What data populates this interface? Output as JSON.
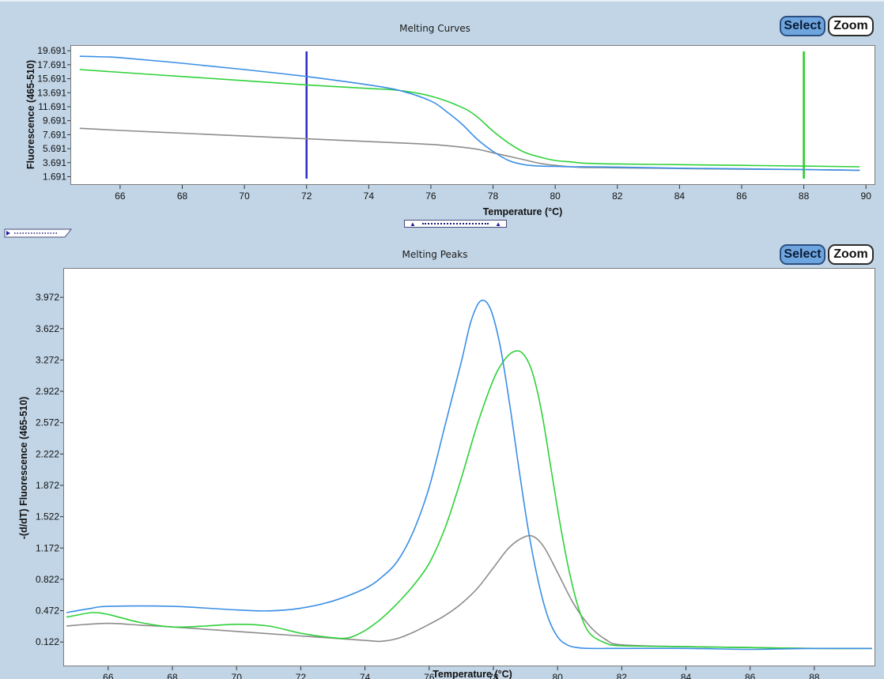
{
  "curves_panel": {
    "title": "Melting Curves",
    "select_label": "Select",
    "zoom_label": "Zoom"
  },
  "peaks_panel": {
    "title": "Melting Peaks",
    "select_label": "Select",
    "zoom_label": "Zoom"
  },
  "colors": {
    "blue": "#3a8ee6",
    "green": "#2fd13a",
    "gray": "#8c8c8c",
    "cursor_blue": "#2b2bc8",
    "cursor_green": "#22cc22"
  },
  "chart_data": [
    {
      "type": "line",
      "title": "Melting Curves",
      "xlabel": "Temperature (°C)",
      "ylabel": "Fluorescence (465-510)",
      "xlim": [
        64.4,
        90.3
      ],
      "ylim": [
        0.5,
        20.5
      ],
      "x_ticks": [
        "66",
        "68",
        "70",
        "72",
        "74",
        "76",
        "78",
        "80",
        "82",
        "84",
        "86",
        "88",
        "90"
      ],
      "y_ticks": [
        "19.691",
        "17.691",
        "15.691",
        "13.691",
        "11.691",
        "9.691",
        "7.691",
        "5.691",
        "3.691",
        "1.691"
      ],
      "cursors": [
        72,
        88
      ],
      "series": [
        {
          "color": "blue",
          "x": [
            64.7,
            65.5,
            66,
            68,
            70,
            72,
            74,
            75,
            76,
            76.5,
            77,
            77.5,
            78,
            78.5,
            79,
            79.5,
            80,
            80.5,
            81,
            82,
            84,
            86,
            88,
            89.8
          ],
          "y": [
            18.9,
            18.8,
            18.7,
            17.9,
            17.0,
            16.0,
            14.8,
            14.0,
            12.5,
            11.0,
            9.2,
            7.0,
            5.3,
            4.0,
            3.4,
            3.2,
            3.15,
            3.1,
            3.1,
            3.05,
            2.9,
            2.8,
            2.7,
            2.6
          ]
        },
        {
          "color": "green",
          "x": [
            64.7,
            66,
            68,
            70,
            72,
            74,
            75,
            76,
            77,
            77.5,
            78,
            78.5,
            79,
            79.5,
            80,
            80.5,
            81,
            82,
            84,
            86,
            88,
            89.8
          ],
          "y": [
            17.0,
            16.6,
            16.0,
            15.4,
            14.8,
            14.3,
            14.0,
            13.2,
            11.6,
            10.2,
            8.2,
            6.5,
            5.2,
            4.5,
            4.0,
            3.8,
            3.6,
            3.5,
            3.4,
            3.3,
            3.2,
            3.1
          ]
        },
        {
          "color": "gray",
          "x": [
            64.7,
            66,
            68,
            70,
            72,
            74,
            76,
            77,
            77.5,
            78,
            78.5,
            79,
            79.5,
            80,
            80.5,
            81,
            82,
            84,
            86,
            88,
            89.8
          ],
          "y": [
            8.6,
            8.3,
            7.9,
            7.5,
            7.1,
            6.7,
            6.3,
            5.9,
            5.6,
            5.1,
            4.6,
            4.1,
            3.6,
            3.3,
            3.1,
            3.0,
            2.95,
            2.85,
            2.75,
            2.7,
            2.6
          ]
        }
      ]
    },
    {
      "type": "line",
      "title": "Melting Peaks",
      "xlabel": "Temperature (°C)",
      "ylabel": "-(d/dT) Fluorescence (465-510)",
      "xlim": [
        64.6,
        89.9
      ],
      "ylim": [
        -0.15,
        4.3
      ],
      "x_ticks": [
        "66",
        "68",
        "70",
        "72",
        "74",
        "76",
        "78",
        "80",
        "82",
        "84",
        "86",
        "88"
      ],
      "y_ticks": [
        "3.972",
        "3.622",
        "3.272",
        "2.922",
        "2.572",
        "2.222",
        "1.872",
        "1.522",
        "1.172",
        "0.822",
        "0.472",
        "0.122"
      ],
      "series": [
        {
          "color": "blue",
          "x": [
            64.7,
            65,
            65.5,
            66,
            68,
            70,
            71,
            72,
            73,
            74,
            74.5,
            75,
            75.5,
            76,
            76.5,
            77,
            77.3,
            77.6,
            77.9,
            78.2,
            78.5,
            78.8,
            79.1,
            79.4,
            79.7,
            80,
            80.3,
            80.6,
            81,
            82,
            84,
            86,
            88,
            89.8
          ],
          "y": [
            0.45,
            0.47,
            0.5,
            0.52,
            0.52,
            0.48,
            0.47,
            0.5,
            0.58,
            0.72,
            0.84,
            1.02,
            1.35,
            1.85,
            2.55,
            3.25,
            3.7,
            3.93,
            3.85,
            3.45,
            2.8,
            2.05,
            1.35,
            0.8,
            0.4,
            0.18,
            0.09,
            0.06,
            0.05,
            0.05,
            0.05,
            0.04,
            0.05,
            0.05
          ]
        },
        {
          "color": "green",
          "x": [
            64.7,
            65,
            65.5,
            66,
            67,
            68,
            69,
            70,
            71,
            72,
            73,
            73.5,
            74,
            74.5,
            75,
            75.5,
            76,
            76.5,
            77,
            77.5,
            78,
            78.3,
            78.6,
            78.9,
            79.2,
            79.5,
            79.8,
            80.1,
            80.4,
            80.7,
            81,
            81.5,
            82,
            84,
            86,
            88,
            89.8
          ],
          "y": [
            0.4,
            0.42,
            0.45,
            0.43,
            0.34,
            0.29,
            0.3,
            0.32,
            0.3,
            0.22,
            0.17,
            0.17,
            0.25,
            0.38,
            0.55,
            0.75,
            1.0,
            1.4,
            1.95,
            2.55,
            3.05,
            3.25,
            3.36,
            3.35,
            3.15,
            2.7,
            2.05,
            1.4,
            0.85,
            0.45,
            0.22,
            0.11,
            0.08,
            0.07,
            0.06,
            0.05,
            0.05
          ]
        },
        {
          "color": "gray",
          "x": [
            64.7,
            65,
            66,
            67,
            68,
            70,
            72,
            74,
            74.5,
            75,
            75.5,
            76,
            76.5,
            77,
            77.5,
            78,
            78.5,
            79,
            79.3,
            79.6,
            80,
            80.5,
            81,
            81.5,
            82,
            84,
            86,
            88,
            89.8
          ],
          "y": [
            0.3,
            0.31,
            0.33,
            0.31,
            0.29,
            0.24,
            0.19,
            0.14,
            0.13,
            0.16,
            0.23,
            0.32,
            0.42,
            0.55,
            0.72,
            0.95,
            1.18,
            1.3,
            1.29,
            1.17,
            0.9,
            0.55,
            0.3,
            0.15,
            0.09,
            0.07,
            0.06,
            0.05,
            0.05
          ]
        }
      ]
    }
  ]
}
